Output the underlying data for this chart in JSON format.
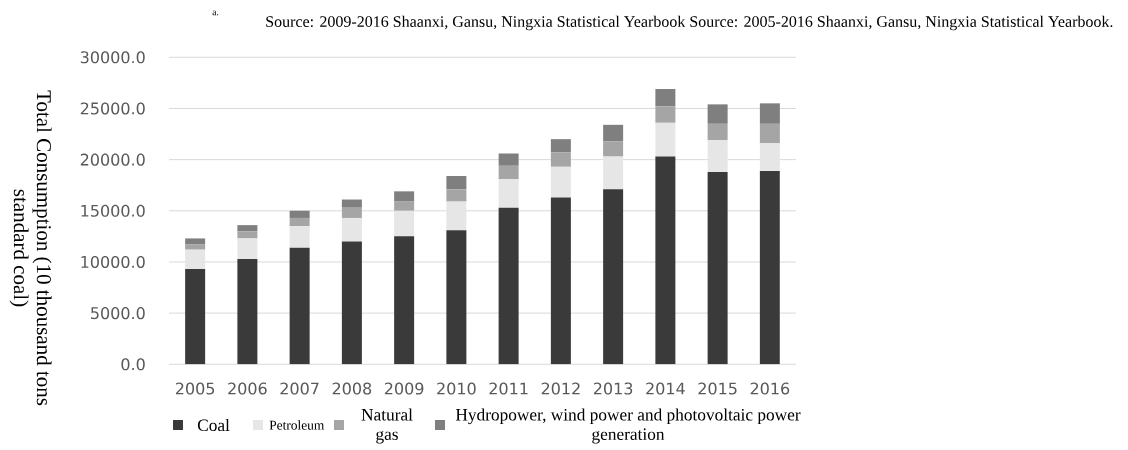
{
  "chart_data": {
    "type": "bar",
    "stacked": true,
    "ylabel": "Total Consumption (10 thousand tons standard coal)",
    "annotations": [
      "a.",
      "Source: 2009-2016 Shaanxi, Gansu, Ningxia Statistical Yearbook Source: 2005-2016 Shaanxi, Gansu, Ningxia Statistical Yearbook."
    ],
    "categories": [
      "2005",
      "2006",
      "2007",
      "2008",
      "2009",
      "2010",
      "2011",
      "2012",
      "2013",
      "2014",
      "2015",
      "2016"
    ],
    "series": [
      {
        "name": "Coal",
        "color": "#3a3a3a",
        "values": [
          9300,
          10300,
          11400,
          12000,
          12500,
          13100,
          15300,
          16300,
          17100,
          20300,
          18800,
          18900
        ]
      },
      {
        "name": "Petroleum",
        "color": "#e7e6e6",
        "values": [
          1900,
          2000,
          2100,
          2300,
          2500,
          2800,
          2800,
          3000,
          3200,
          3300,
          3100,
          2700
        ]
      },
      {
        "name": "Natural gas",
        "color": "#a5a5a5",
        "values": [
          500,
          700,
          800,
          1000,
          900,
          1200,
          1300,
          1400,
          1500,
          1600,
          1600,
          1900
        ]
      },
      {
        "name": "Hydropower, wind power and photovoltaic power generation",
        "color": "#7f7f7f",
        "values": [
          600,
          600,
          700,
          800,
          1000,
          1300,
          1200,
          1300,
          1600,
          1700,
          1900,
          2000
        ]
      }
    ],
    "ylim": [
      0,
      30000
    ],
    "yticks": [
      {
        "value": 0,
        "label": "0.0"
      },
      {
        "value": 5000,
        "label": "5000.0"
      },
      {
        "value": 10000,
        "label": "10000.0"
      },
      {
        "value": 15000,
        "label": "15000.0"
      },
      {
        "value": 20000,
        "label": "20000.0"
      },
      {
        "value": 25000,
        "label": "25000.0"
      },
      {
        "value": 30000,
        "label": "30000.0"
      }
    ],
    "grid": "y",
    "legend": "bottom"
  }
}
